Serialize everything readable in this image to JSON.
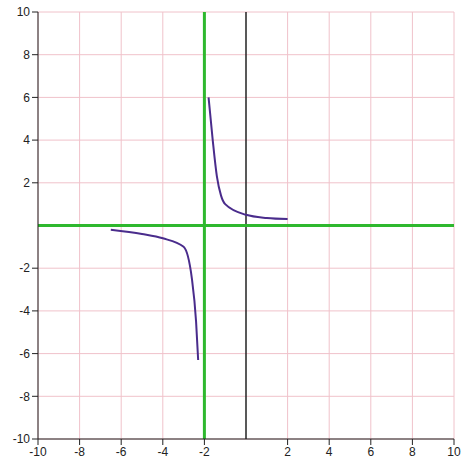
{
  "chart_data": {
    "type": "line",
    "xlim": [
      -10,
      10
    ],
    "ylim": [
      -10,
      10
    ],
    "xticks": [
      -10,
      -8,
      -6,
      -4,
      -2,
      2,
      4,
      6,
      8,
      10
    ],
    "yticks": [
      -10,
      -8,
      -6,
      -4,
      -2,
      2,
      4,
      6,
      8,
      10
    ],
    "grid": true,
    "vertical_asymptote": -2,
    "horizontal_asymptote": 0,
    "asymptote_color": "#2eb82e",
    "series": [
      {
        "color": "#4a2c8c",
        "marker": "none",
        "x": [
          -1.8,
          -1.6,
          -1.4,
          -1.2,
          -1,
          0,
          1,
          2
        ],
        "values": [
          6,
          4,
          2.3,
          1.4,
          1,
          0.5,
          0.35,
          0.3
        ]
      },
      {
        "color": "#4a2c8c",
        "marker": "none",
        "x": [
          -6.5,
          -5,
          -4,
          -3,
          -2.6,
          -2.4,
          -2.3
        ],
        "values": [
          -0.2,
          -0.4,
          -0.6,
          -1,
          -2.5,
          -4.5,
          -6.3
        ]
      }
    ]
  }
}
